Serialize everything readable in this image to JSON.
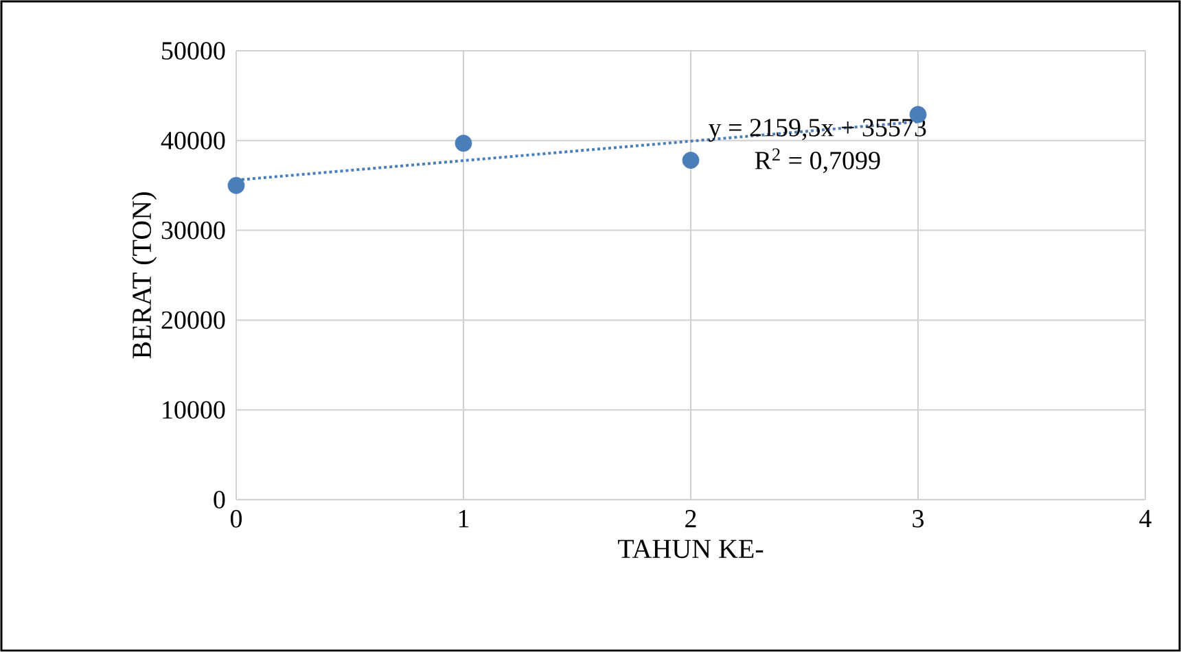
{
  "chart_data": {
    "type": "scatter",
    "xlabel": "TAHUN KE-",
    "ylabel": "BERAT (TON)",
    "xlim": [
      0,
      4
    ],
    "xticks": [
      0,
      1,
      2,
      3,
      4
    ],
    "ylim": [
      0,
      50000
    ],
    "yticks": [
      0,
      10000,
      20000,
      30000,
      40000,
      50000
    ],
    "grid": true,
    "series": [
      {
        "color": "#4a7ebb",
        "marker": "circle",
        "x": [
          0,
          1,
          2,
          3
        ],
        "values": [
          35000,
          39700,
          37800,
          42900
        ]
      },
      {
        "type": "line",
        "color": "#4a7ebb",
        "marker": "none",
        "line_style": "dotted",
        "x": [
          0,
          3
        ],
        "values": [
          35600,
          42100
        ]
      }
    ],
    "annotations": [
      "y = 2159,5x + 35573",
      "R$^{2}$ = 0,7099"
    ]
  }
}
